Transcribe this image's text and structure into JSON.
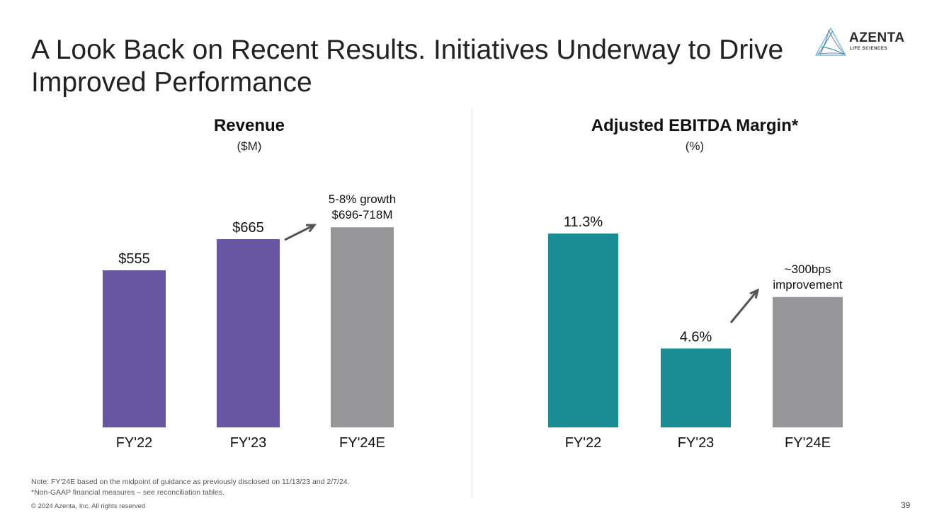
{
  "slide": {
    "title": "A Look Back on Recent Results. Initiatives Underway to Drive Improved Performance",
    "page_number": "39"
  },
  "logo": {
    "name": "AZENTA",
    "subtitle": "LIFE SCIENCES",
    "colors": [
      "#6cc4dc",
      "#8a7bc4",
      "#1c8e95"
    ]
  },
  "colors": {
    "revenue_actual": "#6956a3",
    "margin_actual": "#1a8c93",
    "estimate": "#97979a",
    "arrow": "#555555"
  },
  "footnotes": {
    "note1": "Note: FY'24E based on the midpoint of guidance as previously disclosed on 11/13/23 and 2/7/24.",
    "note2": "*Non-GAAP financial measures – see reconciliation tables.",
    "copyright": "© 2024 Azenta, Inc.  All rights reserved"
  },
  "chart_data": [
    {
      "type": "bar",
      "title": "Revenue",
      "unit": "($M)",
      "categories": [
        "FY'22",
        "FY'23",
        "FY'24E"
      ],
      "values": [
        555,
        665,
        707
      ],
      "data_labels": [
        "$555",
        "$665",
        ""
      ],
      "bar_colors": [
        "#6956a3",
        "#6956a3",
        "#97979a"
      ],
      "ylim": [
        0,
        920
      ],
      "annotation": {
        "lines": [
          "5-8% growth",
          "$696-718M"
        ],
        "from_index": 1,
        "to_index": 2
      },
      "xlabel": "",
      "ylabel": ""
    },
    {
      "type": "bar",
      "title": "Adjusted EBITDA Margin*",
      "unit": "(%)",
      "categories": [
        "FY'22",
        "FY'23",
        "FY'24E"
      ],
      "values": [
        11.3,
        4.6,
        7.6
      ],
      "data_labels": [
        "11.3%",
        "4.6%",
        ""
      ],
      "bar_colors": [
        "#1a8c93",
        "#1a8c93",
        "#97979a"
      ],
      "ylim": [
        0,
        13.2
      ],
      "annotation": {
        "lines": [
          "~300bps",
          "improvement"
        ],
        "from_index": 1,
        "to_index": 2
      },
      "xlabel": "",
      "ylabel": ""
    }
  ]
}
